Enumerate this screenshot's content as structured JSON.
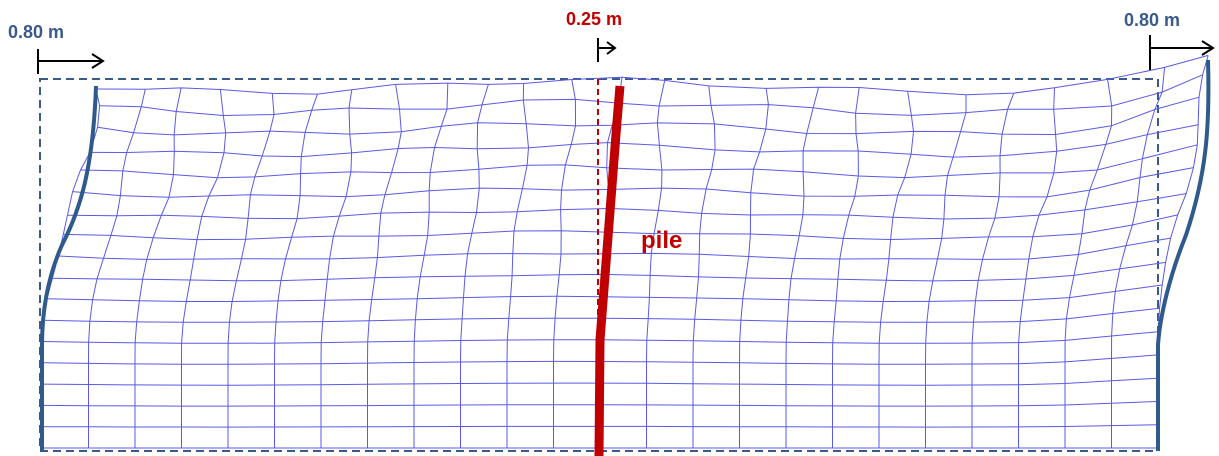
{
  "labels": {
    "left_displacement": "0.80 m",
    "pile_displacement": "0.25 m",
    "right_displacement": "0.80 m",
    "pile": "pile"
  },
  "colors": {
    "mesh": "#5a5ae6",
    "boundary": "#2e5a8c",
    "outline": "#3a5a8a",
    "pile": "#c00000",
    "arrow": "#000000"
  },
  "mesh": {
    "columns": 24,
    "rows": 17
  }
}
